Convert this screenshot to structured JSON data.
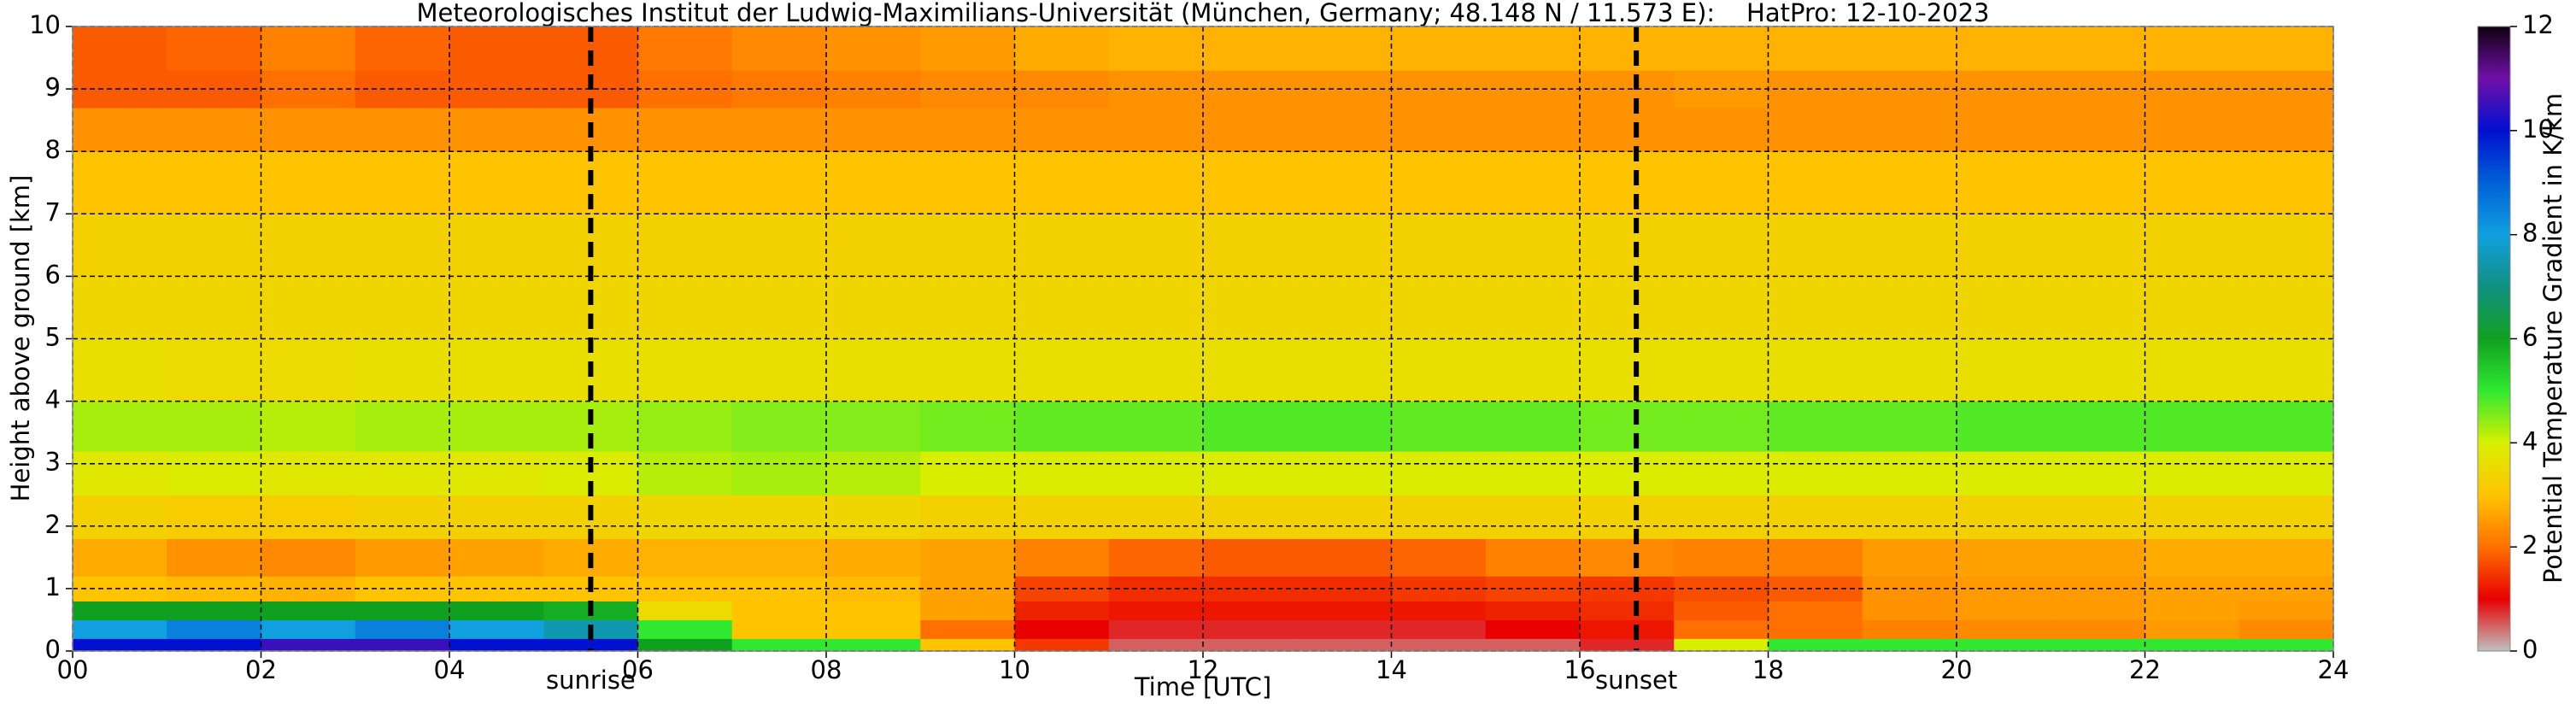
{
  "chart_data": {
    "type": "heatmap",
    "title": "Meteorologisches Institut der Ludwig-Maximilians-Universität (München, Germany; 48.148 N / 11.573 E):    HatPro: 12-10-2023",
    "x_label": "Time [UTC]",
    "y_label": "Height above ground [km]",
    "colorbar_label": "Potential Temperature Gradient in K/km",
    "x": [
      0,
      1,
      2,
      3,
      4,
      5,
      6,
      7,
      8,
      9,
      10,
      11,
      12,
      13,
      14,
      15,
      16,
      17,
      18,
      19,
      20,
      21,
      22,
      23,
      24
    ],
    "y": [
      0,
      0.2,
      0.5,
      0.8,
      1.2,
      1.8,
      2.5,
      3.2,
      4,
      5,
      6,
      7,
      8,
      8.7,
      9.3,
      10
    ],
    "values": [
      [
        10,
        10,
        10.5,
        10.5,
        10,
        10,
        6,
        5,
        5,
        3,
        1.5,
        0.5,
        0.5,
        0.5,
        0.5,
        0.5,
        0.8,
        4,
        5,
        5,
        5,
        5,
        5,
        5
      ],
      [
        8,
        8.5,
        8,
        8.5,
        8,
        7.5,
        5,
        3,
        3,
        2,
        1,
        0.8,
        0.8,
        0.8,
        0.8,
        1,
        1.2,
        2,
        2,
        2.2,
        2.3,
        2.3,
        2.5,
        2.3
      ],
      [
        6,
        6,
        6,
        6,
        6,
        5.8,
        3.5,
        3,
        3,
        2.6,
        1.3,
        1.2,
        1.2,
        1.2,
        1.2,
        1.3,
        1.4,
        1.8,
        2,
        2.4,
        2.5,
        2.5,
        2.6,
        2.5
      ],
      [
        3,
        2.9,
        2.8,
        3,
        3,
        3,
        3,
        3,
        2.9,
        2.6,
        1.6,
        1.4,
        1.4,
        1.4,
        1.5,
        1.6,
        1.5,
        1.7,
        1.8,
        2.4,
        2.5,
        2.5,
        2.6,
        2.6
      ],
      [
        2.7,
        2.4,
        2.3,
        2.5,
        2.6,
        2.7,
        2.8,
        2.8,
        2.7,
        2.6,
        2.2,
        1.9,
        1.8,
        1.8,
        1.9,
        2.2,
        2.3,
        2.2,
        2.2,
        2.5,
        2.6,
        2.6,
        2.7,
        2.7
      ],
      [
        3.3,
        3.2,
        3.2,
        3.3,
        3.3,
        3.3,
        3.4,
        3.4,
        3.4,
        3.3,
        3.3,
        3.3,
        3.3,
        3.3,
        3.3,
        3.3,
        3.3,
        3.3,
        3.3,
        3.3,
        3.3,
        3.3,
        3.3,
        3.3
      ],
      [
        3.8,
        3.9,
        3.8,
        3.8,
        3.8,
        3.9,
        4.2,
        4.3,
        4.2,
        4,
        3.9,
        3.9,
        3.9,
        3.9,
        3.9,
        3.9,
        3.9,
        3.9,
        3.9,
        3.9,
        3.9,
        3.9,
        3.9,
        3.9
      ],
      [
        4.3,
        4.3,
        4.2,
        4.3,
        4.3,
        4.3,
        4.4,
        4.5,
        4.5,
        4.6,
        4.7,
        4.7,
        4.8,
        4.8,
        4.7,
        4.7,
        4.6,
        4.6,
        4.7,
        4.7,
        4.8,
        4.8,
        4.8,
        4.8
      ],
      [
        3.6,
        3.5,
        3.5,
        3.6,
        3.6,
        3.6,
        3.6,
        3.6,
        3.6,
        3.6,
        3.6,
        3.6,
        3.6,
        3.6,
        3.6,
        3.6,
        3.6,
        3.6,
        3.6,
        3.6,
        3.6,
        3.6,
        3.6,
        3.6
      ],
      [
        3.4,
        3.4,
        3.4,
        3.4,
        3.4,
        3.4,
        3.4,
        3.4,
        3.4,
        3.4,
        3.4,
        3.4,
        3.4,
        3.4,
        3.4,
        3.4,
        3.4,
        3.4,
        3.4,
        3.4,
        3.4,
        3.4,
        3.4,
        3.4
      ],
      [
        3.3,
        3.3,
        3.3,
        3.3,
        3.3,
        3.3,
        3.3,
        3.3,
        3.3,
        3.3,
        3.3,
        3.3,
        3.3,
        3.3,
        3.3,
        3.3,
        3.3,
        3.3,
        3.3,
        3.3,
        3.3,
        3.3,
        3.3,
        3.3
      ],
      [
        3,
        3,
        3,
        3,
        3,
        3,
        3,
        3,
        3,
        3,
        3,
        3,
        3,
        3,
        3,
        3,
        3,
        3,
        3,
        3,
        3,
        3,
        3,
        3
      ],
      [
        2.4,
        2.4,
        2.4,
        2.4,
        2.4,
        2.4,
        2.4,
        2.4,
        2.4,
        2.4,
        2.4,
        2.4,
        2.4,
        2.4,
        2.4,
        2.4,
        2.4,
        2.4,
        2.4,
        2.4,
        2.4,
        2.4,
        2.4,
        2.4
      ],
      [
        1.8,
        1.8,
        2,
        1.8,
        1.8,
        1.8,
        2,
        2.1,
        2.2,
        2.3,
        2.3,
        2.4,
        2.4,
        2.4,
        2.4,
        2.4,
        2.4,
        2.5,
        2.4,
        2.4,
        2.4,
        2.4,
        2.4,
        2.4
      ],
      [
        1.8,
        1.9,
        2.2,
        1.9,
        1.8,
        1.8,
        2.1,
        2.3,
        2.4,
        2.5,
        2.7,
        2.8,
        2.8,
        2.8,
        2.8,
        2.8,
        2.8,
        2.8,
        2.8,
        2.8,
        2.8,
        2.8,
        2.8,
        2.8
      ]
    ],
    "xlim": [
      0,
      24
    ],
    "ylim": [
      0,
      10
    ],
    "xticks": [
      {
        "value": 0,
        "label": "00"
      },
      {
        "value": 2,
        "label": "02"
      },
      {
        "value": 4,
        "label": "04"
      },
      {
        "value": 6,
        "label": "06"
      },
      {
        "value": 8,
        "label": "08"
      },
      {
        "value": 10,
        "label": "10"
      },
      {
        "value": 12,
        "label": "12"
      },
      {
        "value": 14,
        "label": "14"
      },
      {
        "value": 16,
        "label": "16"
      },
      {
        "value": 18,
        "label": "18"
      },
      {
        "value": 20,
        "label": "20"
      },
      {
        "value": 22,
        "label": "22"
      },
      {
        "value": 24,
        "label": "24"
      }
    ],
    "yticks": [
      0,
      1,
      2,
      3,
      4,
      5,
      6,
      7,
      8,
      9,
      10
    ],
    "grid": true,
    "clim": [
      0,
      12
    ],
    "cticks": [
      0,
      2,
      4,
      6,
      8,
      10,
      12
    ],
    "colormap": [
      {
        "value": 0,
        "color": "#c0c0c0"
      },
      {
        "value": 1,
        "color": "#e80000"
      },
      {
        "value": 2,
        "color": "#ff7000"
      },
      {
        "value": 3,
        "color": "#ffc400"
      },
      {
        "value": 4,
        "color": "#d8f000"
      },
      {
        "value": 5,
        "color": "#30e830"
      },
      {
        "value": 6,
        "color": "#10a020"
      },
      {
        "value": 7,
        "color": "#109080"
      },
      {
        "value": 8,
        "color": "#10a0e0"
      },
      {
        "value": 9,
        "color": "#0060d8"
      },
      {
        "value": 10,
        "color": "#0010d0"
      },
      {
        "value": 11,
        "color": "#7010a8"
      },
      {
        "value": 12,
        "color": "#100010"
      }
    ],
    "vlines": [
      {
        "x": 5.5,
        "label": "sunrise"
      },
      {
        "x": 16.6,
        "label": "sunset"
      }
    ]
  }
}
